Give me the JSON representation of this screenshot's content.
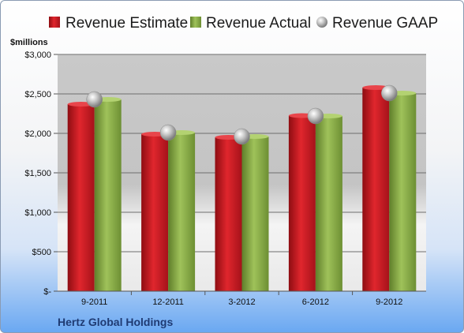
{
  "chart_data": {
    "type": "bar",
    "title": "",
    "subtitle": "Hertz Global Holdings",
    "unit_label": "$millions",
    "categories": [
      "9-2011",
      "12-2011",
      "3-2012",
      "6-2012",
      "9-2012"
    ],
    "series": [
      {
        "name": "Revenue Estimate",
        "kind": "bar",
        "color": "#cc1b22",
        "values": [
          2370,
          1990,
          1950,
          2225,
          2580
        ]
      },
      {
        "name": "Revenue Actual",
        "kind": "bar",
        "color": "#8fb04a",
        "values": [
          2430,
          2010,
          1960,
          2220,
          2510
        ]
      },
      {
        "name": "Revenue GAAP",
        "kind": "marker",
        "color": "#b9b9b9",
        "values": [
          2430,
          2010,
          1960,
          2220,
          2510
        ]
      }
    ],
    "yticks": [
      "$-",
      "$500",
      "$1,000",
      "$1,500",
      "$2,000",
      "$2,500",
      "$3,000"
    ],
    "ytick_values": [
      0,
      500,
      1000,
      1500,
      2000,
      2500,
      3000
    ],
    "ylim": [
      0,
      3000
    ],
    "grid": true,
    "legend": "top"
  }
}
